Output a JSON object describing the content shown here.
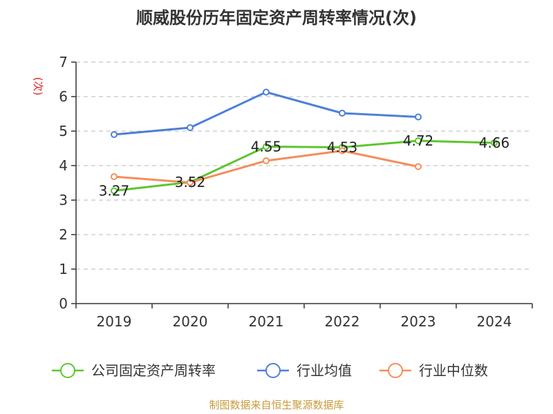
{
  "chart_data": {
    "type": "line",
    "title": "顺威股份历年固定资产周转率情况(次)",
    "ylabel": "(次)",
    "x": [
      "2019",
      "2020",
      "2021",
      "2022",
      "2023",
      "2024"
    ],
    "ylim": [
      0,
      7
    ],
    "yticks": [
      "0",
      "1",
      "2",
      "3",
      "4",
      "5",
      "6",
      "7"
    ],
    "grid": true,
    "legend_position": "bottom",
    "series": [
      {
        "name": "公司固定资产周转率",
        "color": "#5cc52f",
        "values": [
          3.27,
          3.52,
          4.55,
          4.53,
          4.72,
          4.66
        ],
        "labels": [
          "3.27",
          "3.52",
          "4.55",
          "4.53",
          "4.72",
          "4.66"
        ]
      },
      {
        "name": "行业均值",
        "color": "#4e7fd8",
        "values": [
          4.9,
          5.1,
          6.13,
          5.52,
          5.41,
          null
        ]
      },
      {
        "name": "行业中位数",
        "color": "#f48d5b",
        "values": [
          3.68,
          3.51,
          4.14,
          4.43,
          3.97,
          null
        ]
      }
    ]
  },
  "source": "制图数据来自恒生聚源数据库"
}
